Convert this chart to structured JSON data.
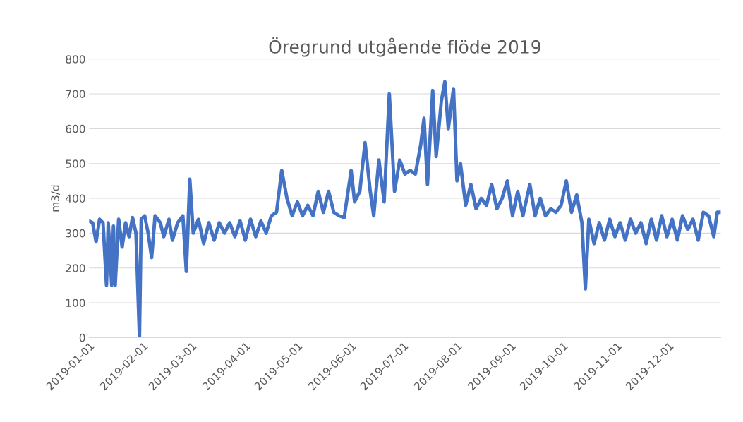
{
  "chart_data": {
    "type": "line",
    "title": "Öregrund utgående flöde 2019",
    "ylabel": "m3/d",
    "x": [
      "2019-01-01",
      "2019-01-03",
      "2019-01-05",
      "2019-01-07",
      "2019-01-09",
      "2019-01-11",
      "2019-01-12",
      "2019-01-14",
      "2019-01-15",
      "2019-01-16",
      "2019-01-18",
      "2019-01-20",
      "2019-01-22",
      "2019-01-24",
      "2019-01-26",
      "2019-01-28",
      "2019-01-30",
      "2019-01-31",
      "2019-02-02",
      "2019-02-04",
      "2019-02-06",
      "2019-02-08",
      "2019-02-11",
      "2019-02-13",
      "2019-02-16",
      "2019-02-18",
      "2019-02-21",
      "2019-02-24",
      "2019-02-26",
      "2019-02-28",
      "2019-03-02",
      "2019-03-05",
      "2019-03-08",
      "2019-03-11",
      "2019-03-14",
      "2019-03-17",
      "2019-03-20",
      "2019-03-23",
      "2019-03-26",
      "2019-03-29",
      "2019-04-01",
      "2019-04-04",
      "2019-04-07",
      "2019-04-10",
      "2019-04-13",
      "2019-04-16",
      "2019-04-19",
      "2019-04-22",
      "2019-04-25",
      "2019-04-28",
      "2019-05-01",
      "2019-05-04",
      "2019-05-07",
      "2019-05-10",
      "2019-05-13",
      "2019-05-16",
      "2019-05-19",
      "2019-05-22",
      "2019-05-25",
      "2019-05-28",
      "2019-06-01",
      "2019-06-03",
      "2019-06-06",
      "2019-06-09",
      "2019-06-12",
      "2019-06-14",
      "2019-06-17",
      "2019-06-20",
      "2019-06-23",
      "2019-06-26",
      "2019-06-29",
      "2019-07-02",
      "2019-07-05",
      "2019-07-08",
      "2019-07-11",
      "2019-07-13",
      "2019-07-15",
      "2019-07-18",
      "2019-07-20",
      "2019-07-23",
      "2019-07-25",
      "2019-07-27",
      "2019-07-30",
      "2019-08-01",
      "2019-08-03",
      "2019-08-06",
      "2019-08-09",
      "2019-08-12",
      "2019-08-15",
      "2019-08-18",
      "2019-08-21",
      "2019-08-24",
      "2019-08-27",
      "2019-08-30",
      "2019-09-02",
      "2019-09-05",
      "2019-09-08",
      "2019-09-12",
      "2019-09-15",
      "2019-09-18",
      "2019-09-21",
      "2019-09-24",
      "2019-09-27",
      "2019-09-30",
      "2019-10-03",
      "2019-10-06",
      "2019-10-09",
      "2019-10-12",
      "2019-10-14",
      "2019-10-16",
      "2019-10-19",
      "2019-10-22",
      "2019-10-25",
      "2019-10-28",
      "2019-10-31",
      "2019-11-03",
      "2019-11-06",
      "2019-11-09",
      "2019-11-12",
      "2019-11-15",
      "2019-11-18",
      "2019-11-21",
      "2019-11-24",
      "2019-11-27",
      "2019-11-30",
      "2019-12-03",
      "2019-12-06",
      "2019-12-09",
      "2019-12-12",
      "2019-12-15",
      "2019-12-18",
      "2019-12-21",
      "2019-12-24",
      "2019-12-27",
      "2019-12-29",
      "2019-12-31"
    ],
    "series": [
      {
        "color": "#4472c4",
        "values": [
          335,
          330,
          275,
          340,
          330,
          150,
          330,
          150,
          320,
          150,
          340,
          260,
          330,
          290,
          345,
          300,
          0,
          340,
          350,
          300,
          230,
          350,
          330,
          290,
          340,
          280,
          330,
          350,
          190,
          455,
          300,
          340,
          270,
          330,
          280,
          330,
          300,
          330,
          290,
          335,
          280,
          340,
          290,
          335,
          300,
          350,
          360,
          480,
          400,
          350,
          390,
          350,
          380,
          350,
          420,
          360,
          420,
          360,
          350,
          345,
          480,
          390,
          420,
          560,
          420,
          350,
          510,
          390,
          700,
          420,
          510,
          470,
          480,
          470,
          550,
          630,
          440,
          710,
          520,
          680,
          735,
          600,
          715,
          450,
          500,
          380,
          440,
          370,
          400,
          380,
          440,
          370,
          400,
          450,
          350,
          420,
          350,
          440,
          350,
          400,
          350,
          370,
          360,
          380,
          450,
          360,
          410,
          330,
          140,
          340,
          270,
          330,
          280,
          340,
          290,
          330,
          280,
          340,
          300,
          330,
          270,
          340,
          280,
          350,
          290,
          340,
          280,
          350,
          310,
          340,
          280,
          360,
          350,
          290,
          360,
          360
        ]
      }
    ],
    "xlim": [
      "2019-01-01",
      "2019-12-31"
    ],
    "xticks": [
      "2019-01-01",
      "2019-02-01",
      "2019-03-01",
      "2019-04-01",
      "2019-05-01",
      "2019-06-01",
      "2019-07-01",
      "2019-08-01",
      "2019-09-01",
      "2019-10-01",
      "2019-11-01",
      "2019-12-01"
    ],
    "ylim": [
      0,
      800
    ],
    "yticks": [
      0,
      100,
      200,
      300,
      400,
      500,
      600,
      700,
      800
    ],
    "grid": "y",
    "legend": false,
    "marker": "none",
    "line_style": "solid"
  }
}
